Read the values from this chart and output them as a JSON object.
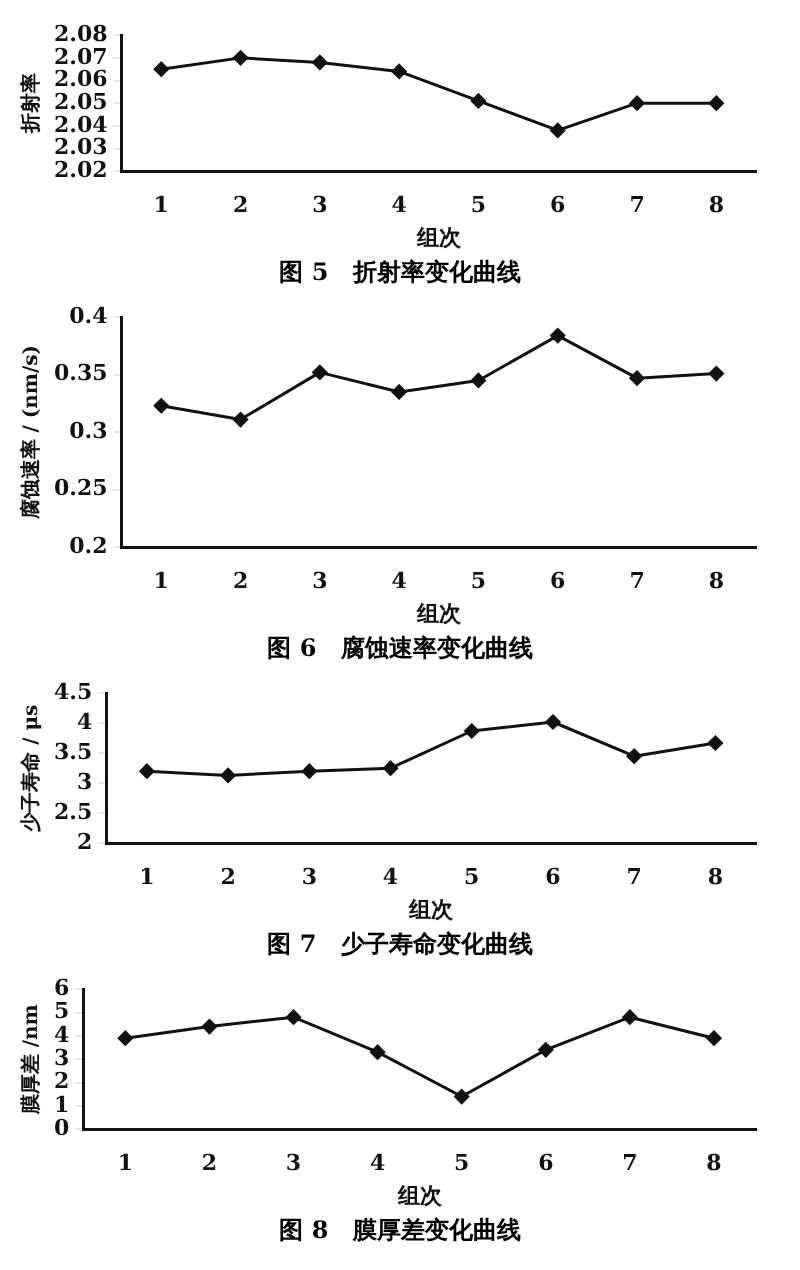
{
  "chart_data": [
    {
      "type": "line",
      "title": "图 5　折射率变化曲线",
      "xlabel": "组次",
      "ylabel": "折射率",
      "categories": [
        "1",
        "2",
        "3",
        "4",
        "5",
        "6",
        "7",
        "8"
      ],
      "series": [
        {
          "color": "#111111",
          "values": [
            2.065,
            2.07,
            2.068,
            2.064,
            2.051,
            2.038,
            2.05,
            2.05
          ]
        }
      ],
      "ylim": [
        2.02,
        2.08
      ],
      "yticks": [
        2.02,
        2.03,
        2.04,
        2.05,
        2.06,
        2.07,
        2.08
      ],
      "grid": false,
      "legend": false,
      "marker": "diamond",
      "line_style": "solid"
    },
    {
      "type": "line",
      "title": "图 6　腐蚀速率变化曲线",
      "xlabel": "组次",
      "ylabel": "腐蚀速率 / (nm/s)",
      "categories": [
        "1",
        "2",
        "3",
        "4",
        "5",
        "6",
        "7",
        "8"
      ],
      "series": [
        {
          "color": "#111111",
          "values": [
            0.323,
            0.311,
            0.352,
            0.335,
            0.345,
            0.384,
            0.347,
            0.351
          ]
        }
      ],
      "ylim": [
        0.2,
        0.4
      ],
      "yticks": [
        {
          "value": 0.2,
          "label": "0.2"
        },
        0.25,
        {
          "value": 0.3,
          "label": "0.3"
        },
        0.35,
        {
          "value": 0.4,
          "label": "0.4"
        }
      ],
      "grid": false,
      "legend": false,
      "marker": "diamond",
      "line_style": "solid"
    },
    {
      "type": "line",
      "title": "图 7　少子寿命变化曲线",
      "xlabel": "组次",
      "ylabel": "少子寿命 / μs",
      "categories": [
        "1",
        "2",
        "3",
        "4",
        "5",
        "6",
        "7",
        "8"
      ],
      "series": [
        {
          "color": "#111111",
          "values": [
            3.2,
            3.13,
            3.2,
            3.25,
            3.87,
            4.02,
            3.45,
            3.67
          ]
        }
      ],
      "ylim": [
        2,
        4.5
      ],
      "yticks": [
        2,
        2.5,
        3,
        3.5,
        4,
        4.5
      ],
      "grid": false,
      "legend": false,
      "marker": "diamond",
      "line_style": "solid"
    },
    {
      "type": "line",
      "title": "图 8　膜厚差变化曲线",
      "xlabel": "组次",
      "ylabel": "膜厚差 /nm",
      "categories": [
        "1",
        "2",
        "3",
        "4",
        "5",
        "6",
        "7",
        "8"
      ],
      "series": [
        {
          "color": "#111111",
          "values": [
            3.9,
            4.4,
            4.8,
            3.3,
            1.4,
            3.4,
            4.8,
            3.9
          ]
        }
      ],
      "ylim": [
        0,
        6
      ],
      "yticks": [
        0,
        1,
        2,
        3,
        4,
        5,
        6
      ],
      "grid": false,
      "legend": false,
      "marker": "diamond",
      "line_style": "solid"
    }
  ]
}
